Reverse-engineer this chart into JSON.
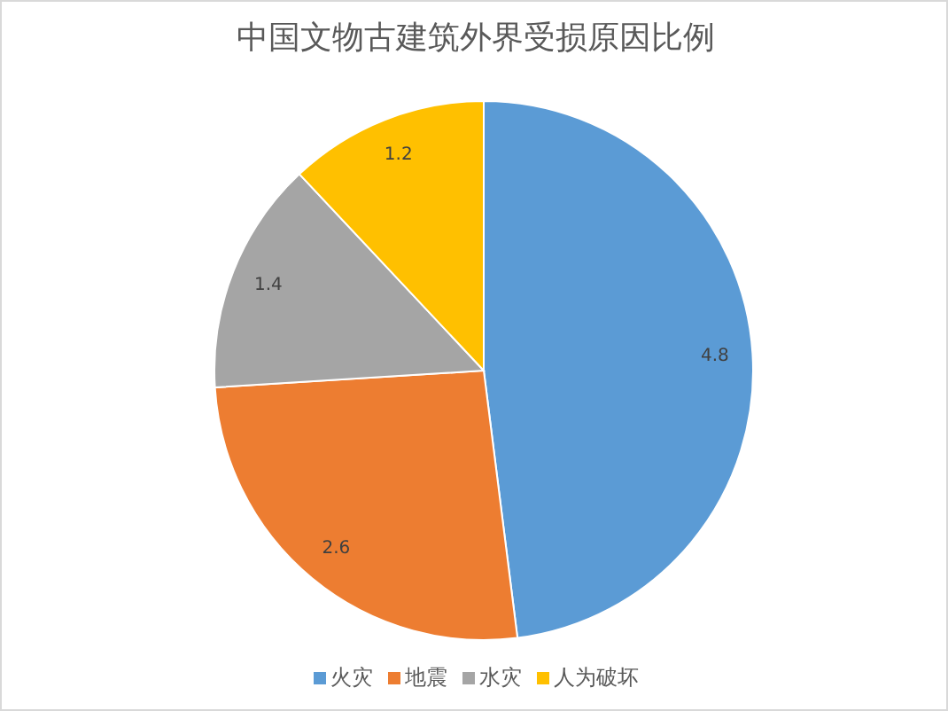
{
  "chart_data": {
    "type": "pie",
    "title": "中国文物古建筑外界受损原因比例",
    "categories": [
      "火灾",
      "地震",
      "水灾",
      "人为破坏"
    ],
    "values": [
      4.8,
      2.6,
      1.4,
      1.2
    ],
    "colors": [
      "#5b9bd5",
      "#ed7d31",
      "#a5a5a5",
      "#ffc000"
    ],
    "data_labels": true,
    "legend": "bottom"
  }
}
